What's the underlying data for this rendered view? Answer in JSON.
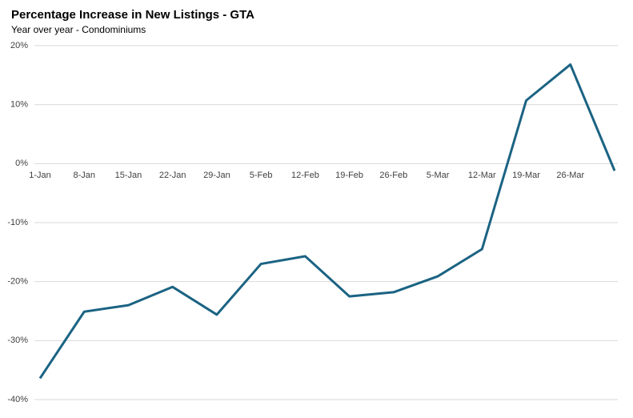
{
  "chart_data": {
    "type": "line",
    "title": "Percentage Increase in New Listings - GTA",
    "subtitle": "Year over year - Condominiums",
    "categories": [
      "1-Jan",
      "8-Jan",
      "15-Jan",
      "22-Jan",
      "29-Jan",
      "5-Feb",
      "12-Feb",
      "19-Feb",
      "26-Feb",
      "5-Mar",
      "12-Mar",
      "19-Mar",
      "26-Mar",
      null
    ],
    "series": [
      {
        "name": "New listings",
        "color": "#1b6383",
        "values": [
          -36.4,
          -25.1,
          -24.0,
          -20.9,
          -25.6,
          -17.0,
          -15.7,
          -22.5,
          -21.8,
          -19.1,
          -14.5,
          10.7,
          16.8,
          -1.2
        ]
      }
    ],
    "ylim": [
      -40,
      20
    ],
    "yticks": [
      {
        "value": -40,
        "label": "-40%"
      },
      {
        "value": -30,
        "label": "-30%"
      },
      {
        "value": -20,
        "label": "-20%"
      },
      {
        "value": -10,
        "label": "-10%"
      },
      {
        "value": 0,
        "label": "0%"
      },
      {
        "value": 10,
        "label": "10%"
      },
      {
        "value": 20,
        "label": "20%"
      }
    ],
    "grid": true
  }
}
